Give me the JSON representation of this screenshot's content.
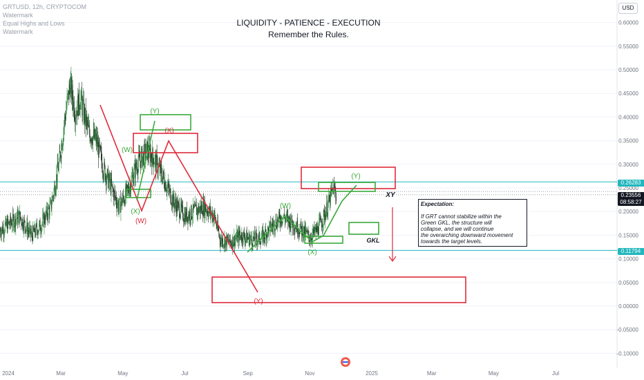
{
  "header": {
    "symbol_line": "GRTUSD, 12h, CRYPTOCOM",
    "watermark_1": "Watermark",
    "indicator": "Equal Highs and Lows",
    "watermark_2": "Watermark",
    "title_line1": "LIQUIDITY - PATIENCE - EXECUTION",
    "title_line2": "Remember the Rules.",
    "currency": "USD"
  },
  "price_tags": {
    "upper_level": "0.26283",
    "current_price": "0.23556",
    "countdown": "08:58:27",
    "lower_level": "0.11794"
  },
  "note": {
    "title": "Expectation:",
    "lines": [
      "If GRT cannot stabilize within the",
      "Green GKL, the structure will",
      "collapse, and we will continue",
      "the overarching downward movement",
      "towards the target levels."
    ]
  },
  "colors": {
    "bull_candle": "#2d8a3e",
    "bear_candle": "#1e2a1e",
    "wave_red": "#e0293a",
    "wave_green": "#3aa83a",
    "level_line": "#22b7bd",
    "price_tag_bg": "#131722",
    "axis_text": "#6f7480"
  },
  "chart_data": {
    "type": "candlestick",
    "y_axis": {
      "ticks": [
        "0.60000",
        "0.55000",
        "0.50000",
        "0.45000",
        "0.40000",
        "0.35000",
        "0.30000",
        "0.25000",
        "0.20000",
        "0.15000",
        "0.10000",
        "0.05000",
        "0.00000",
        "-0.05000",
        "-0.10000"
      ],
      "range": [
        -0.1,
        0.6
      ]
    },
    "x_axis": {
      "labels": [
        "2024",
        "Mar",
        "May",
        "Jul",
        "Sep",
        "Nov",
        "2025",
        "Mar",
        "May",
        "Jul"
      ]
    },
    "price_path": [
      [
        "2024-01-01",
        0.16
      ],
      [
        "2024-01-20",
        0.19
      ],
      [
        "2024-02-01",
        0.15
      ],
      [
        "2024-02-10",
        0.17
      ],
      [
        "2024-02-20",
        0.21
      ],
      [
        "2024-02-28",
        0.3
      ],
      [
        "2024-03-05",
        0.4
      ],
      [
        "2024-03-10",
        0.47
      ],
      [
        "2024-03-15",
        0.41
      ],
      [
        "2024-03-20",
        0.44
      ],
      [
        "2024-03-28",
        0.37
      ],
      [
        "2024-04-05",
        0.35
      ],
      [
        "2024-04-12",
        0.29
      ],
      [
        "2024-04-20",
        0.25
      ],
      [
        "2024-04-27",
        0.21
      ],
      [
        "2024-05-05",
        0.24
      ],
      [
        "2024-05-15",
        0.3
      ],
      [
        "2024-05-25",
        0.33
      ],
      [
        "2024-06-01",
        0.31
      ],
      [
        "2024-06-10",
        0.27
      ],
      [
        "2024-06-20",
        0.22
      ],
      [
        "2024-07-01",
        0.19
      ],
      [
        "2024-07-10",
        0.2
      ],
      [
        "2024-07-20",
        0.21
      ],
      [
        "2024-07-30",
        0.19
      ],
      [
        "2024-08-05",
        0.14
      ],
      [
        "2024-08-15",
        0.135
      ],
      [
        "2024-08-25",
        0.15
      ],
      [
        "2024-09-05",
        0.14
      ],
      [
        "2024-09-15",
        0.145
      ],
      [
        "2024-09-25",
        0.17
      ],
      [
        "2024-10-05",
        0.19
      ],
      [
        "2024-10-15",
        0.175
      ],
      [
        "2024-10-25",
        0.16
      ],
      [
        "2024-11-01",
        0.145
      ],
      [
        "2024-11-08",
        0.16
      ],
      [
        "2024-11-15",
        0.19
      ],
      [
        "2024-11-20",
        0.22
      ],
      [
        "2024-11-24",
        0.25
      ],
      [
        "2024-11-27",
        0.2356
      ]
    ],
    "horizontal_levels": [
      {
        "price": 0.26283,
        "label": "0.26283"
      },
      {
        "price": 0.11794,
        "label": "0.11794"
      }
    ],
    "wave_labels": [
      {
        "text": "(Y)",
        "color": "green"
      },
      {
        "text": "(X)",
        "color": "red"
      },
      {
        "text": "(W)",
        "color": "green"
      },
      {
        "text": "(X)",
        "color": "green"
      },
      {
        "text": "(W)",
        "color": "red"
      },
      {
        "text": "(W)",
        "color": "green"
      },
      {
        "text": "(Y)",
        "color": "green"
      },
      {
        "text": "(X)",
        "color": "green"
      },
      {
        "text": "(Y)",
        "color": "red"
      }
    ],
    "annotations": [
      "XY",
      "GKL"
    ]
  }
}
